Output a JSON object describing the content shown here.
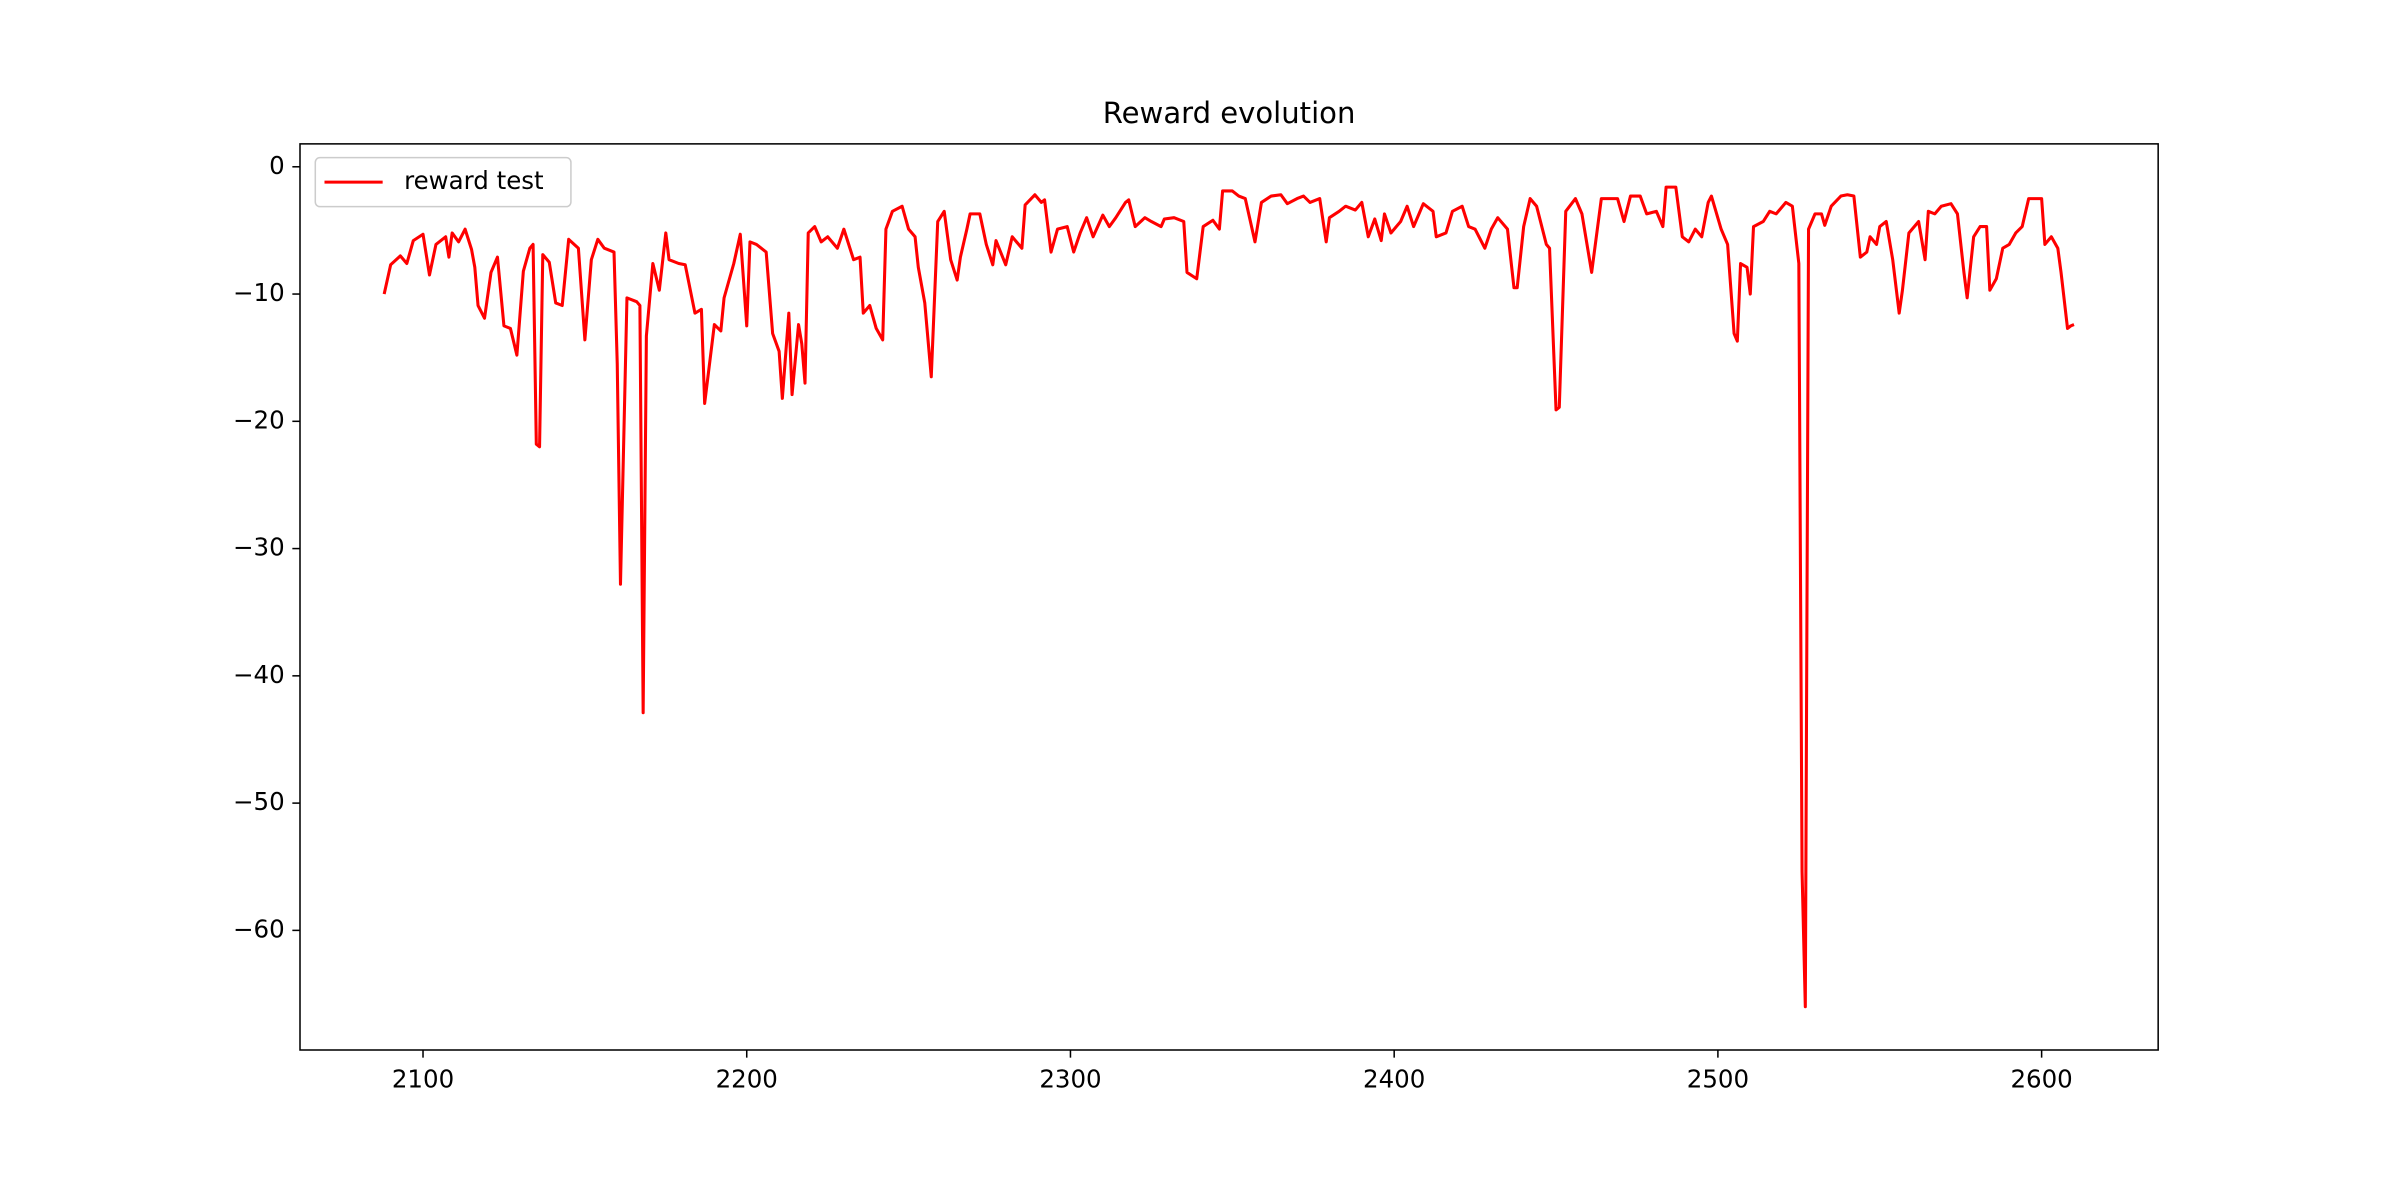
{
  "chart_data": {
    "type": "line",
    "title": "Reward evolution",
    "x": [
      2088,
      2090,
      2093,
      2095,
      2097,
      2100,
      2102,
      2104,
      2107,
      2108,
      2109,
      2111,
      2113,
      2115,
      2116,
      2117,
      2119,
      2121,
      2123,
      2125,
      2127,
      2129,
      2131,
      2133,
      2134,
      2135,
      2136,
      2137,
      2139,
      2141,
      2143,
      2145,
      2148,
      2150,
      2152,
      2154,
      2156,
      2159,
      2160,
      2161,
      2163,
      2166,
      2167,
      2168,
      2169,
      2171,
      2173,
      2175,
      2176,
      2179,
      2181,
      2184,
      2186,
      2187,
      2190,
      2192,
      2193,
      2196,
      2198,
      2200,
      2201,
      2203,
      2206,
      2208,
      2210,
      2211,
      2213,
      2214,
      2216,
      2217,
      2218,
      2219,
      2221,
      2223,
      2225,
      2228,
      2230,
      2233,
      2235,
      2236,
      2238,
      2240,
      2242,
      2243,
      2245,
      2248,
      2250,
      2252,
      2253,
      2255,
      2257,
      2259,
      2261,
      2263,
      2265,
      2266,
      2268,
      2269,
      2272,
      2274,
      2276,
      2277,
      2280,
      2282,
      2285,
      2286,
      2289,
      2291,
      2292,
      2294,
      2296,
      2299,
      2301,
      2303,
      2305,
      2307,
      2310,
      2312,
      2314,
      2317,
      2318,
      2320,
      2323,
      2325,
      2328,
      2329,
      2332,
      2335,
      2336,
      2339,
      2341,
      2344,
      2346,
      2347,
      2350,
      2352,
      2354,
      2357,
      2359,
      2362,
      2365,
      2367,
      2370,
      2372,
      2374,
      2377,
      2379,
      2380,
      2383,
      2385,
      2388,
      2390,
      2392,
      2394,
      2396,
      2397,
      2399,
      2402,
      2404,
      2406,
      2409,
      2412,
      2413,
      2416,
      2418,
      2421,
      2423,
      2425,
      2428,
      2430,
      2432,
      2435,
      2437,
      2438,
      2440,
      2442,
      2444,
      2447,
      2448,
      2450,
      2451,
      2453,
      2456,
      2458,
      2461,
      2464,
      2466,
      2469,
      2471,
      2473,
      2476,
      2478,
      2481,
      2483,
      2484,
      2487,
      2489,
      2491,
      2493,
      2495,
      2497,
      2498,
      2501,
      2503,
      2505,
      2506,
      2507,
      2509,
      2510,
      2511,
      2514,
      2516,
      2518,
      2521,
      2523,
      2525,
      2526,
      2527,
      2528,
      2530,
      2532,
      2533,
      2535,
      2538,
      2540,
      2542,
      2544,
      2546,
      2547,
      2549,
      2550,
      2552,
      2554,
      2556,
      2557,
      2559,
      2562,
      2564,
      2565,
      2567,
      2569,
      2572,
      2574,
      2576,
      2577,
      2579,
      2581,
      2583,
      2584,
      2586,
      2588,
      2590,
      2592,
      2594,
      2596,
      2598,
      2600,
      2601,
      2603,
      2605,
      2606,
      2608,
      2609,
      2610
    ],
    "series": [
      {
        "name": "reward test",
        "color": "#ff0000",
        "values": [
          -10.0,
          -7.7,
          -7.0,
          -7.6,
          -5.8,
          -5.3,
          -8.5,
          -6.1,
          -5.5,
          -7.1,
          -5.2,
          -5.9,
          -4.9,
          -6.5,
          -7.9,
          -10.9,
          -11.9,
          -8.3,
          -7.1,
          -12.5,
          -12.7,
          -14.8,
          -8.2,
          -6.4,
          -6.1,
          -21.8,
          -22.0,
          -6.9,
          -7.5,
          -10.7,
          -10.9,
          -5.7,
          -6.4,
          -13.6,
          -7.3,
          -5.7,
          -6.4,
          -6.7,
          -15.5,
          -32.8,
          -10.3,
          -10.6,
          -10.9,
          -42.9,
          -13.3,
          -7.6,
          -9.7,
          -5.2,
          -7.3,
          -7.6,
          -7.7,
          -11.5,
          -11.2,
          -18.6,
          -12.4,
          -12.9,
          -10.3,
          -7.6,
          -5.3,
          -12.5,
          -5.9,
          -6.1,
          -6.7,
          -13.1,
          -14.5,
          -18.2,
          -11.5,
          -17.9,
          -12.4,
          -13.9,
          -17.0,
          -5.2,
          -4.7,
          -5.9,
          -5.5,
          -6.4,
          -4.9,
          -7.3,
          -7.1,
          -11.5,
          -10.9,
          -12.7,
          -13.6,
          -4.9,
          -3.5,
          -3.1,
          -4.9,
          -5.5,
          -7.9,
          -10.7,
          -16.5,
          -4.3,
          -3.5,
          -7.3,
          -8.9,
          -7.1,
          -4.9,
          -3.7,
          -3.7,
          -6.1,
          -7.7,
          -5.8,
          -7.7,
          -5.5,
          -6.4,
          -3.0,
          -2.2,
          -2.8,
          -2.6,
          -6.7,
          -4.9,
          -4.7,
          -6.7,
          -5.2,
          -4.0,
          -5.5,
          -3.8,
          -4.7,
          -4.0,
          -2.8,
          -2.6,
          -4.7,
          -4.0,
          -4.3,
          -4.7,
          -4.1,
          -4.0,
          -4.3,
          -8.3,
          -8.8,
          -4.7,
          -4.2,
          -4.9,
          -1.9,
          -1.9,
          -2.3,
          -2.5,
          -5.9,
          -2.8,
          -2.3,
          -2.2,
          -2.9,
          -2.5,
          -2.3,
          -2.8,
          -2.5,
          -5.9,
          -4.0,
          -3.5,
          -3.1,
          -3.4,
          -2.8,
          -5.5,
          -4.1,
          -5.8,
          -3.7,
          -5.2,
          -4.3,
          -3.1,
          -4.7,
          -2.9,
          -3.5,
          -5.5,
          -5.2,
          -3.5,
          -3.1,
          -4.7,
          -4.9,
          -6.4,
          -4.9,
          -4.0,
          -4.9,
          -9.5,
          -9.5,
          -4.7,
          -2.5,
          -3.1,
          -6.1,
          -6.4,
          -19.1,
          -18.9,
          -3.5,
          -2.5,
          -3.7,
          -8.3,
          -2.5,
          -2.5,
          -2.5,
          -4.3,
          -2.3,
          -2.3,
          -3.7,
          -3.5,
          -4.7,
          -1.6,
          -1.6,
          -5.5,
          -5.9,
          -4.9,
          -5.5,
          -2.8,
          -2.3,
          -4.9,
          -6.1,
          -13.1,
          -13.7,
          -7.6,
          -7.9,
          -10.0,
          -4.7,
          -4.3,
          -3.5,
          -3.7,
          -2.8,
          -3.1,
          -7.6,
          -55.4,
          -66.0,
          -4.9,
          -3.7,
          -3.7,
          -4.6,
          -3.1,
          -2.3,
          -2.2,
          -2.3,
          -7.1,
          -6.7,
          -5.5,
          -6.1,
          -4.7,
          -4.3,
          -7.3,
          -11.5,
          -9.7,
          -5.2,
          -4.3,
          -7.3,
          -3.5,
          -3.7,
          -3.1,
          -2.9,
          -3.7,
          -8.3,
          -10.3,
          -5.5,
          -4.7,
          -4.7,
          -9.7,
          -8.8,
          -6.4,
          -6.1,
          -5.2,
          -4.7,
          -2.5,
          -2.5,
          -2.5,
          -6.1,
          -5.5,
          -6.4,
          -8.3,
          -12.7,
          -12.5,
          -12.4
        ]
      }
    ],
    "xlim": [
      2062,
      2636
    ],
    "ylim": [
      -69.4,
      1.8
    ],
    "xticks": [
      2100,
      2200,
      2300,
      2400,
      2500,
      2600
    ],
    "yticks": [
      0,
      {
        "value": -10,
        "label": "−10"
      },
      {
        "value": -20,
        "label": "−20"
      },
      {
        "value": -30,
        "label": "−30"
      },
      {
        "value": -40,
        "label": "−40"
      },
      {
        "value": -50,
        "label": "−50"
      },
      {
        "value": -60,
        "label": "−60"
      }
    ],
    "legend": "upper left",
    "grid": false
  }
}
